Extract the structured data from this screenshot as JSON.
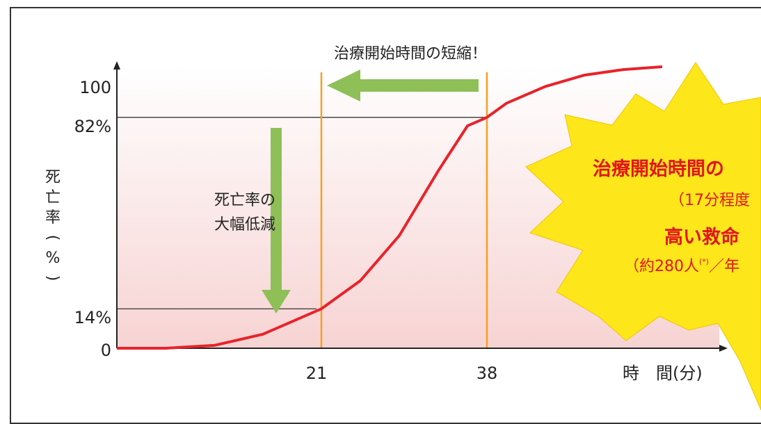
{
  "chart_data": {
    "type": "line",
    "title": "",
    "ylabel": "死亡率(%)",
    "xlabel": "時　間(分)",
    "y_ticks": [
      "100",
      "82%",
      "14%",
      "0"
    ],
    "x_ticks": [
      "21",
      "38"
    ],
    "ylim": [
      0,
      100
    ],
    "series": [
      {
        "x": [
          0,
          5,
          10,
          15,
          21,
          25,
          29,
          33,
          36,
          38,
          40,
          44,
          48,
          52,
          56
        ],
        "y": [
          0,
          0,
          1,
          5,
          14,
          24,
          40,
          63,
          79,
          82,
          87,
          93,
          97,
          99,
          100
        ]
      }
    ],
    "colors": {
      "curve": "#e8232a",
      "marker_lines": "#f5a020",
      "arrows": "#8fc057",
      "burst": "#fde61a",
      "emphasis_text": "#e0161d"
    }
  },
  "annotations": {
    "top_label": "治療開始時間の短縮！",
    "drop_label_line1": "死亡率の",
    "drop_label_line2": "大幅低減"
  },
  "burst": {
    "title_line": "治療開始時間の",
    "sub_line": "（17分程度",
    "title_line2": "高い救命",
    "sub_line2_a": "（約280人",
    "sub_line2_note": "(*)",
    "sub_line2_b": "／年"
  }
}
